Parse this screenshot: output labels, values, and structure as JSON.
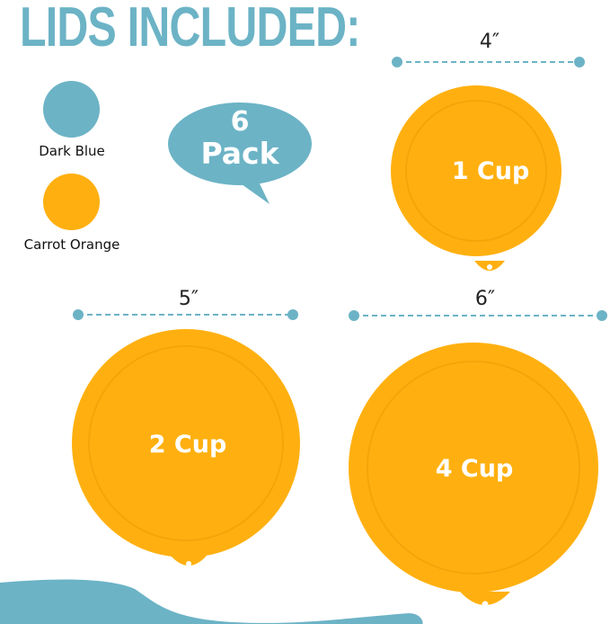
{
  "title": "LIDS INCLUDED:",
  "colors_legend": [
    {
      "label": "Dark Blue",
      "color": "#6cb3c6"
    },
    {
      "label": "Carrot Orange",
      "color": "#ffb010"
    }
  ],
  "badge": {
    "line1": "6",
    "line2": "Pack",
    "color": "#6cb3c6"
  },
  "lids": [
    {
      "size": "4″",
      "label": "1 Cup"
    },
    {
      "size": "5″",
      "label": "2 Cup"
    },
    {
      "size": "6″",
      "label": "4 Cup"
    }
  ],
  "accent_color": "#6cb3c6",
  "lid_color": "#ffb010"
}
